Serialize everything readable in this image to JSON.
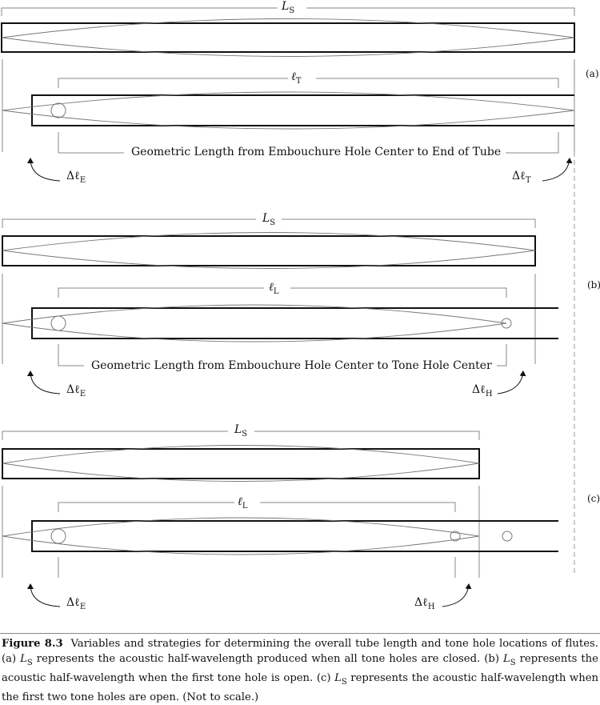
{
  "figure": {
    "panel_a": {
      "tag": "(a)",
      "ls_label": {
        "symbol": "L",
        "sub": "S"
      },
      "ell_label": {
        "symbol": "ℓ",
        "sub": "T"
      },
      "description": "Geometric Length from Embouchure Hole Center to End of Tube",
      "delta_left": {
        "symbol": "Δℓ",
        "sub": "E"
      },
      "delta_right": {
        "symbol": "Δℓ",
        "sub": "T"
      }
    },
    "panel_b": {
      "tag": "(b)",
      "ls_label": {
        "symbol": "L",
        "sub": "S"
      },
      "ell_label": {
        "symbol": "ℓ",
        "sub": "L"
      },
      "description": "Geometric Length from Embouchure Hole Center to Tone Hole Center",
      "delta_left": {
        "symbol": "Δℓ",
        "sub": "E"
      },
      "delta_right": {
        "symbol": "Δℓ",
        "sub": "H"
      }
    },
    "panel_c": {
      "tag": "(c)",
      "ls_label": {
        "symbol": "L",
        "sub": "S"
      },
      "ell_label": {
        "symbol": "ℓ",
        "sub": "L"
      },
      "delta_left": {
        "symbol": "Δℓ",
        "sub": "E"
      },
      "delta_right": {
        "symbol": "Δℓ",
        "sub": "H"
      }
    }
  },
  "caption": {
    "label": "Figure 8.3",
    "t1": "Variables and strategies for determining the overall tube length and tone hole locations of flutes. (a) ",
    "ls1": "L",
    "ls1_sub": "S",
    "t2": " represents the acoustic half-wavelength produced when all tone holes are closed. (b) ",
    "ls2": "L",
    "ls2_sub": "S",
    "t3": " represents the acoustic half-wavelength when the first tone hole is open. (c) ",
    "ls3": "L",
    "ls3_sub": "S",
    "t4": " represents the acoustic half-wavelength when the first two tone holes are open. (Not to scale.)"
  }
}
